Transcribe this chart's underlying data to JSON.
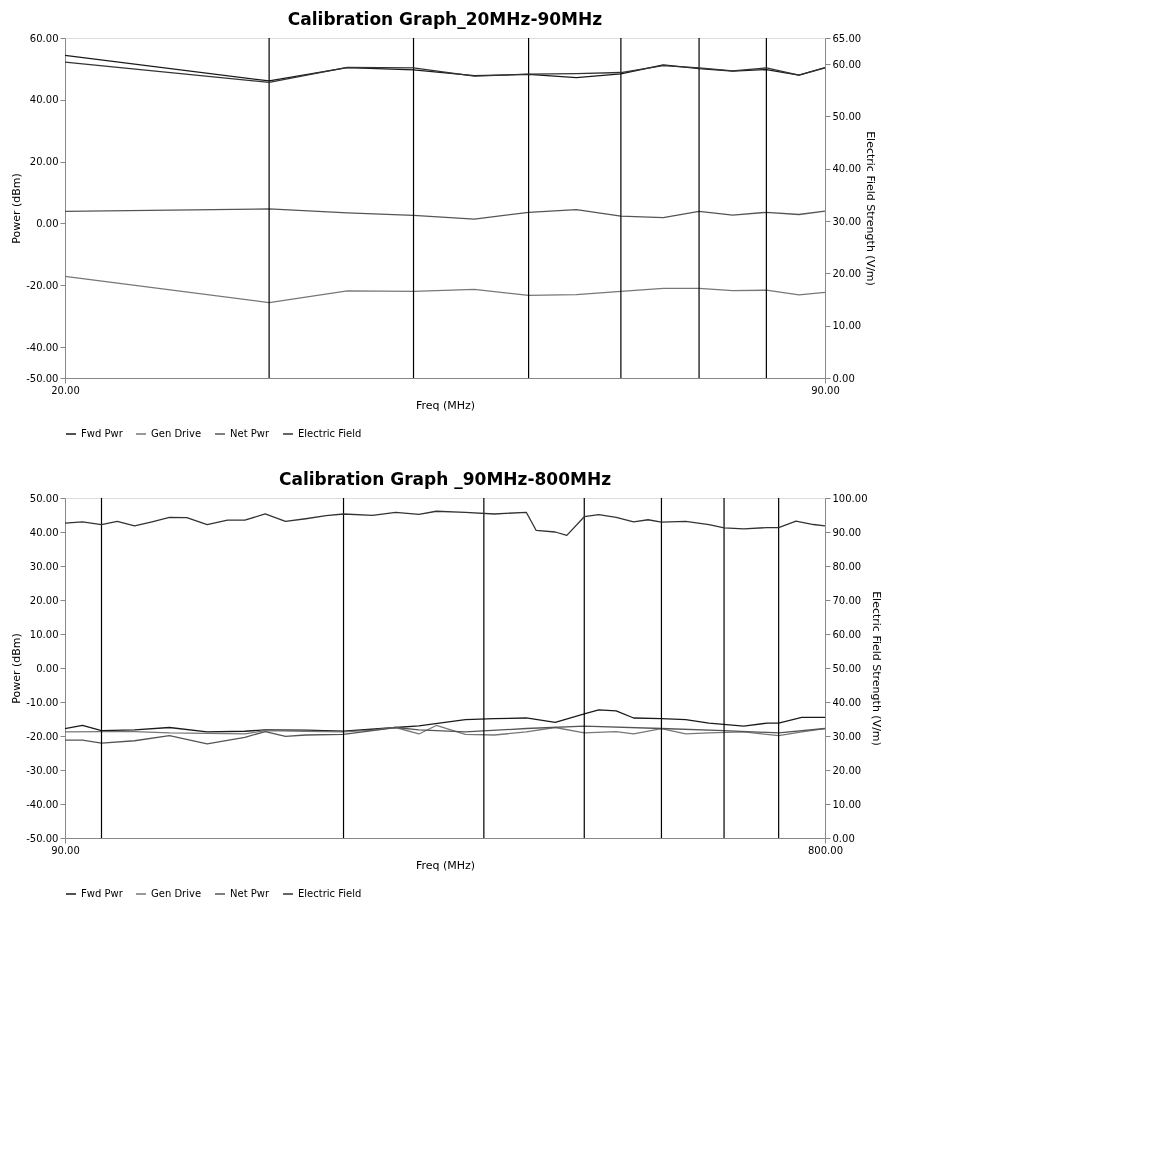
{
  "chart_data": [
    {
      "type": "line",
      "title": "Calibration Graph_20MHz-90MHz",
      "xlabel": "Freq (MHz)",
      "ylabel": "Power (dBm)",
      "y2label": "Electric Field Strength (V/m)",
      "x": [
        20,
        38.8,
        46,
        52.1,
        57.7,
        62.7,
        67.1,
        71.2,
        75.1,
        78.4,
        81.5,
        84.6,
        87.6,
        90
      ],
      "series": [
        {
          "name": "Fwd Pwr",
          "color": "#1a1a1a",
          "values": [
            54.4,
            46.1,
            50.4,
            49.7,
            47.8,
            48.2,
            47.2,
            48.4,
            51.3,
            50.1,
            49.3,
            49.8,
            48.0,
            50.4
          ]
        },
        {
          "name": "Gen Drive",
          "color": "#777777",
          "values": [
            -17.1,
            -25.6,
            -21.8,
            -22.0,
            -21.3,
            -23.3,
            -23.0,
            -22.0,
            -21.0,
            -21.0,
            -21.7,
            -21.6,
            -23.1,
            -22.3
          ]
        },
        {
          "name": "Net Pwr",
          "color": "#555555",
          "values": [
            3.9,
            4.7,
            3.4,
            2.6,
            1.4,
            3.6,
            4.5,
            2.4,
            1.9,
            3.9,
            2.7,
            3.6,
            2.9,
            4.0
          ]
        },
        {
          "name": "Electric Field",
          "color": "#333333",
          "axis": "y2",
          "values": [
            60.4,
            56.5,
            59.4,
            59.3,
            57.7,
            58.1,
            58.2,
            58.4,
            59.7,
            59.3,
            58.7,
            59.3,
            57.9,
            59.3
          ]
        }
      ],
      "xlim": [
        20,
        90
      ],
      "xticks": [
        {
          "value": 20,
          "label": "20.00"
        },
        {
          "value": 90,
          "label": "90.00"
        }
      ],
      "ylim": [
        -50,
        60
      ],
      "yticks": [
        {
          "value": -50,
          "label": "-50.00"
        },
        {
          "value": -40,
          "label": "-40.00"
        },
        {
          "value": -20,
          "label": "-20.00"
        },
        {
          "value": 0,
          "label": "0.00"
        },
        {
          "value": 20,
          "label": "20.00"
        },
        {
          "value": 40,
          "label": "40.00"
        },
        {
          "value": 60,
          "label": "60.00"
        }
      ],
      "y2lim": [
        0,
        65
      ],
      "y2ticks": [
        {
          "value": 0,
          "label": "0.00"
        },
        {
          "value": 10,
          "label": "10.00"
        },
        {
          "value": 20,
          "label": "20.00"
        },
        {
          "value": 30,
          "label": "30.00"
        },
        {
          "value": 40,
          "label": "40.00"
        },
        {
          "value": 50,
          "label": "50.00"
        },
        {
          "value": 60,
          "label": "60.00"
        },
        {
          "value": 65,
          "label": "65.00"
        }
      ],
      "ref_lines": [
        {
          "axis": "x",
          "value": 38.8,
          "color": "#000000"
        },
        {
          "axis": "x",
          "value": 52.1,
          "color": "#000000"
        },
        {
          "axis": "x",
          "value": 62.7,
          "color": "#000000"
        },
        {
          "axis": "x",
          "value": 71.2,
          "color": "#000000"
        },
        {
          "axis": "x",
          "value": 78.4,
          "color": "#000000"
        },
        {
          "axis": "x",
          "value": 84.6,
          "color": "#000000"
        }
      ],
      "grid": false,
      "legend": "bottom",
      "line_style": "solid"
    },
    {
      "type": "line",
      "title": "Calibration Graph _90MHz-800MHz",
      "xlabel": "Freq (MHz)",
      "ylabel": "Power (dBm)",
      "y2label": "Electric Field Strength (V/m)",
      "series": [
        {
          "name": "Fwd Pwr",
          "color": "#1a1a1a",
          "x": [
            90,
            106.3,
            124.1,
            155.0,
            187.6,
            222.8,
            258.0,
            277.0,
            314.9,
            350.2,
            398.9,
            420.6,
            464.0,
            491.1,
            520.9,
            548.0,
            575.1,
            588.6,
            604.9,
            621.2,
            647.2,
            669.9,
            691.6,
            724.1,
            745.8,
            756.7,
            778.3,
            800
          ],
          "values": [
            -17.8,
            -16.9,
            -18.4,
            -18.2,
            -17.5,
            -18.8,
            -18.6,
            -18.2,
            -18.3,
            -18.6,
            -17.5,
            -17.0,
            -15.2,
            -14.9,
            -14.7,
            -16.0,
            -13.5,
            -12.3,
            -12.6,
            -14.7,
            -14.9,
            -15.2,
            -16.2,
            -17.1,
            -16.2,
            -16.2,
            -14.5,
            -14.5
          ]
        },
        {
          "name": "Gen Drive",
          "color": "#777777",
          "x": [
            90,
            124.1,
            155.0,
            187.6,
            222.8,
            258.0,
            277.0,
            314.9,
            350.2,
            377.3,
            398.9,
            420.6,
            436.9,
            464.0,
            491.1,
            520.9,
            548.0,
            575.1,
            604.9,
            621.2,
            647.2,
            669.9,
            691.6,
            724.1,
            756.7,
            778.3,
            800
          ],
          "values": [
            -18.8,
            -18.7,
            -18.7,
            -19.1,
            -19.2,
            -19.4,
            -18.4,
            -18.6,
            -18.8,
            -18.3,
            -17.5,
            -19.4,
            -16.9,
            -19.5,
            -19.7,
            -18.8,
            -17.5,
            -19.1,
            -18.7,
            -19.4,
            -17.8,
            -19.4,
            -19.1,
            -18.8,
            -19.9,
            -18.8,
            -17.8
          ]
        },
        {
          "name": "Net Pwr",
          "color": "#555555",
          "x": [
            90,
            106.3,
            124.1,
            155.0,
            187.6,
            222.8,
            258.0,
            277.0,
            296.0,
            314.9,
            350.2,
            377.3,
            398.9,
            420.6,
            464.0,
            520.9,
            575.1,
            647.2,
            705.7,
            756.7,
            800
          ],
          "values": [
            -21.2,
            -21.2,
            -22.1,
            -21.4,
            -19.9,
            -22.3,
            -20.4,
            -18.7,
            -20.1,
            -19.7,
            -19.5,
            -18.4,
            -17.5,
            -18.2,
            -18.8,
            -17.8,
            -17.1,
            -17.8,
            -18.4,
            -19.1,
            -17.8
          ]
        },
        {
          "name": "Electric Field",
          "color": "#333333",
          "axis": "y2",
          "x": [
            90,
            106.3,
            124.1,
            138.8,
            155.0,
            171.3,
            187.6,
            203.8,
            222.8,
            241.8,
            258.0,
            277.0,
            296.0,
            314.9,
            333.9,
            350.2,
            377.3,
            398.9,
            420.6,
            436.9,
            464.0,
            491.1,
            520.9,
            530.1,
            548.0,
            558.8,
            575.1,
            588.6,
            604.9,
            621.2,
            634.7,
            647.2,
            669.9,
            691.6,
            705.7,
            724.1,
            745.8,
            756.7,
            772.9,
            789.2,
            800
          ],
          "values": [
            92.6,
            93.0,
            92.2,
            93.1,
            91.8,
            93.0,
            94.3,
            94.2,
            92.2,
            93.5,
            93.5,
            95.3,
            93.1,
            93.9,
            94.8,
            95.3,
            94.9,
            95.8,
            95.2,
            96.1,
            95.8,
            95.3,
            95.8,
            90.5,
            90.0,
            89.0,
            94.5,
            95.1,
            94.3,
            93.0,
            93.6,
            92.9,
            93.1,
            92.2,
            91.2,
            90.9,
            91.3,
            91.3,
            93.2,
            92.2,
            91.8
          ]
        }
      ],
      "xlim": [
        90,
        800
      ],
      "xticks": [
        {
          "value": 90,
          "label": "90.00"
        },
        {
          "value": 800,
          "label": "800.00"
        }
      ],
      "ylim": [
        -50,
        50
      ],
      "yticks": [
        {
          "value": -50,
          "label": "-50.00"
        },
        {
          "value": -40,
          "label": "-40.00"
        },
        {
          "value": -30,
          "label": "-30.00"
        },
        {
          "value": -20,
          "label": "-20.00"
        },
        {
          "value": -10,
          "label": "-10.00"
        },
        {
          "value": 0,
          "label": "0.00"
        },
        {
          "value": 10,
          "label": "10.00"
        },
        {
          "value": 20,
          "label": "20.00"
        },
        {
          "value": 30,
          "label": "30.00"
        },
        {
          "value": 40,
          "label": "40.00"
        },
        {
          "value": 50,
          "label": "50.00"
        }
      ],
      "y2lim": [
        0,
        100
      ],
      "y2ticks": [
        {
          "value": 0,
          "label": "0.00"
        },
        {
          "value": 10,
          "label": "10.00"
        },
        {
          "value": 20,
          "label": "20.00"
        },
        {
          "value": 30,
          "label": "30.00"
        },
        {
          "value": 40,
          "label": "40.00"
        },
        {
          "value": 50,
          "label": "50.00"
        },
        {
          "value": 60,
          "label": "60.00"
        },
        {
          "value": 70,
          "label": "70.00"
        },
        {
          "value": 80,
          "label": "80.00"
        },
        {
          "value": 90,
          "label": "90.00"
        },
        {
          "value": 100,
          "label": "100.00"
        }
      ],
      "ref_lines": [
        {
          "axis": "x",
          "value": 124.1,
          "color": "#000000"
        },
        {
          "axis": "x",
          "value": 350.2,
          "color": "#000000"
        },
        {
          "axis": "x",
          "value": 481.3,
          "color": "#000000"
        },
        {
          "axis": "x",
          "value": 575.1,
          "color": "#000000"
        },
        {
          "axis": "x",
          "value": 647.2,
          "color": "#000000"
        },
        {
          "axis": "x",
          "value": 705.7,
          "color": "#000000"
        },
        {
          "axis": "x",
          "value": 756.7,
          "color": "#000000"
        }
      ],
      "grid": false,
      "legend": "bottom",
      "line_style": "solid"
    }
  ]
}
